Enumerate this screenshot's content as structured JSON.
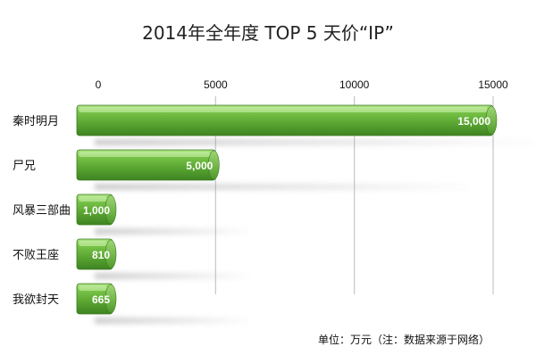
{
  "chart_data": {
    "type": "bar",
    "orientation": "horizontal",
    "title": "2014年全年度 TOP 5 天价“IP”",
    "categories": [
      "秦时明月",
      "尸兄",
      "风暴三部曲",
      "不败王座",
      "我欲封天"
    ],
    "values": [
      15000,
      5000,
      1000,
      810,
      665
    ],
    "value_labels": [
      "15,000",
      "5,000",
      "1,000",
      "810",
      "665"
    ],
    "x_ticks": [
      0,
      5000,
      10000,
      15000
    ],
    "x_tick_labels": [
      "0",
      "5000",
      "10000",
      "15000"
    ],
    "xlim": [
      0,
      15000
    ],
    "xlabel": "",
    "ylabel": "",
    "axis_position": "top",
    "gridlines": true,
    "legend": "none",
    "bar_color": "#5aa332",
    "bar_highlight": "#8fd35a",
    "bar_shade": "#3e7d22",
    "note": "单位：万元（注：数据来源于网络）"
  }
}
